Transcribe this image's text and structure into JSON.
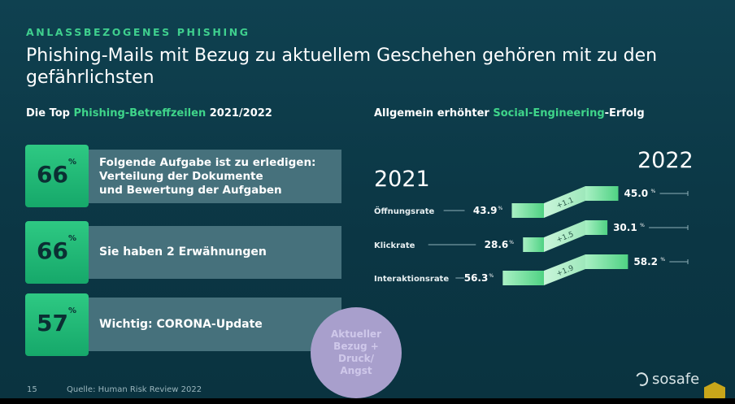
{
  "kicker": "ANLASSBEZOGENES PHISHING",
  "title": "Phishing-Mails mit Bezug zu aktuellem Geschehen gehören mit zu den gefährlichsten",
  "left": {
    "heading_pre": "Die Top ",
    "heading_hl": "Phishing-Betreffzeilen",
    "heading_post": " 2021/2022",
    "items": [
      {
        "percent": "66",
        "unit": "%",
        "subject_lines": [
          "Folgende Aufgabe  ist zu erledigen:",
          "Verteilung der Dokumente",
          "und Bewertung der Aufgaben"
        ]
      },
      {
        "percent": "66",
        "unit": "%",
        "subject_lines": [
          "Sie haben 2 Erwähnungen"
        ]
      },
      {
        "percent": "57",
        "unit": "%",
        "subject_lines": [
          "Wichtig: CORONA-Update"
        ]
      }
    ],
    "circle_lines": [
      "Aktueller",
      "Bezug +",
      "Druck/",
      "Angst"
    ]
  },
  "right": {
    "heading_pre": "Allgemein erhöhter ",
    "heading_hl": "Social-Engineering",
    "heading_post": "-Erfolg"
  },
  "chart_data": {
    "type": "slope",
    "title": "Allgemein erhöhter Social-Engineering-Erfolg",
    "x": [
      "2021",
      "2022"
    ],
    "unit": "%",
    "series": [
      {
        "name": "Öffnungsrate",
        "values": [
          43.9,
          45.0
        ],
        "delta": "+1.1"
      },
      {
        "name": "Klickrate",
        "values": [
          28.6,
          30.1
        ],
        "delta": "+1.5"
      },
      {
        "name": "Interaktionsrate",
        "values": [
          56.3,
          58.2
        ],
        "delta": "+1.9"
      }
    ]
  },
  "footer": {
    "page": "15",
    "source": "Quelle: Human Risk Review 2022",
    "logo": "sosafe"
  },
  "colors": {
    "accent": "#3fd58a",
    "bg": "#0d3a48",
    "circle": "#a89fcc"
  }
}
